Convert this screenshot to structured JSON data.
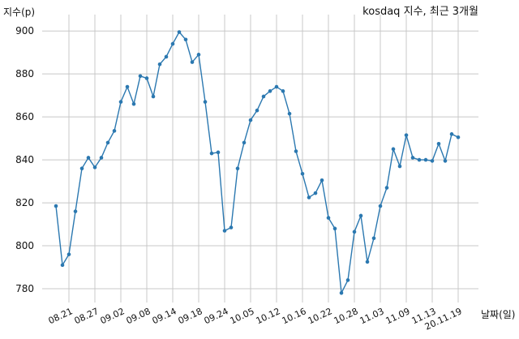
{
  "chart_data": {
    "type": "line",
    "title": "kosdaq 지수, 최근 3개월",
    "xlabel": "날짜(일)",
    "ylabel": "지수(p)",
    "grid": true,
    "ylim": [
      770,
      907
    ],
    "yticks": [
      780,
      800,
      820,
      840,
      860,
      880,
      900
    ],
    "xtick_labels": [
      "08.21",
      "08.27",
      "09.02",
      "09.08",
      "09.14",
      "09.18",
      "09.24",
      "10.05",
      "10.12",
      "10.16",
      "10.22",
      "10.28",
      "11.03",
      "11.09",
      "11.13",
      "20.11.19"
    ],
    "xtick_indices": [
      2,
      6,
      10,
      14,
      18,
      22,
      26,
      30,
      34,
      38,
      42,
      46,
      50,
      54,
      58,
      62
    ],
    "series": [
      {
        "values": [
          818.5,
          791,
          796,
          816,
          836,
          841,
          836.5,
          841,
          848,
          853.5,
          867,
          874,
          866,
          879,
          878,
          869.5,
          884.5,
          888,
          894,
          899.5,
          896,
          885.5,
          889,
          867,
          843,
          843.5,
          807,
          808.5,
          836,
          848,
          858.5,
          863,
          869.5,
          872,
          874,
          872,
          861.5,
          844,
          833.5,
          822.5,
          824.5,
          830.5,
          813,
          808,
          778,
          784,
          806.5,
          814,
          792.5,
          803.5,
          818.5,
          827,
          845,
          837,
          851.5,
          841,
          840,
          840,
          839.5,
          847.5,
          839.5,
          852,
          850.5
        ]
      }
    ]
  }
}
